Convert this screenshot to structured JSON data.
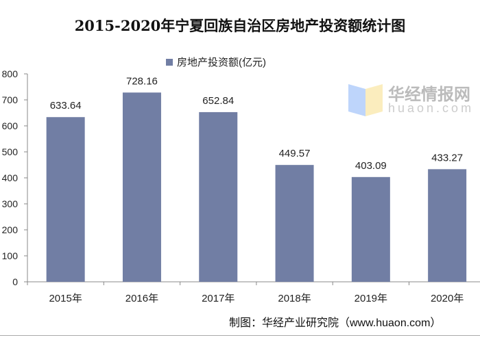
{
  "chart_data": {
    "type": "bar",
    "title": "2015-2020年宁夏回族自治区房地产投资额统计图",
    "categories": [
      "2015年",
      "2016年",
      "2017年",
      "2018年",
      "2019年",
      "2020年"
    ],
    "series": [
      {
        "name": "房地产投资额(亿元)",
        "values": [
          633.64,
          728.16,
          652.84,
          449.57,
          403.09,
          433.27
        ],
        "color": "#717ea4"
      }
    ],
    "data_labels": [
      "633.64",
      "728.16",
      "652.84",
      "449.57",
      "403.09",
      "433.27"
    ],
    "yticks": [
      "0",
      "100",
      "200",
      "300",
      "400",
      "500",
      "600",
      "700",
      "800"
    ],
    "ylim": [
      0,
      800
    ],
    "grid": false,
    "legend": "top"
  },
  "source": "制图：华经产业研究院（www.huaon.com）",
  "watermark": {
    "text": "华经情报网",
    "url": "huaon.com"
  }
}
